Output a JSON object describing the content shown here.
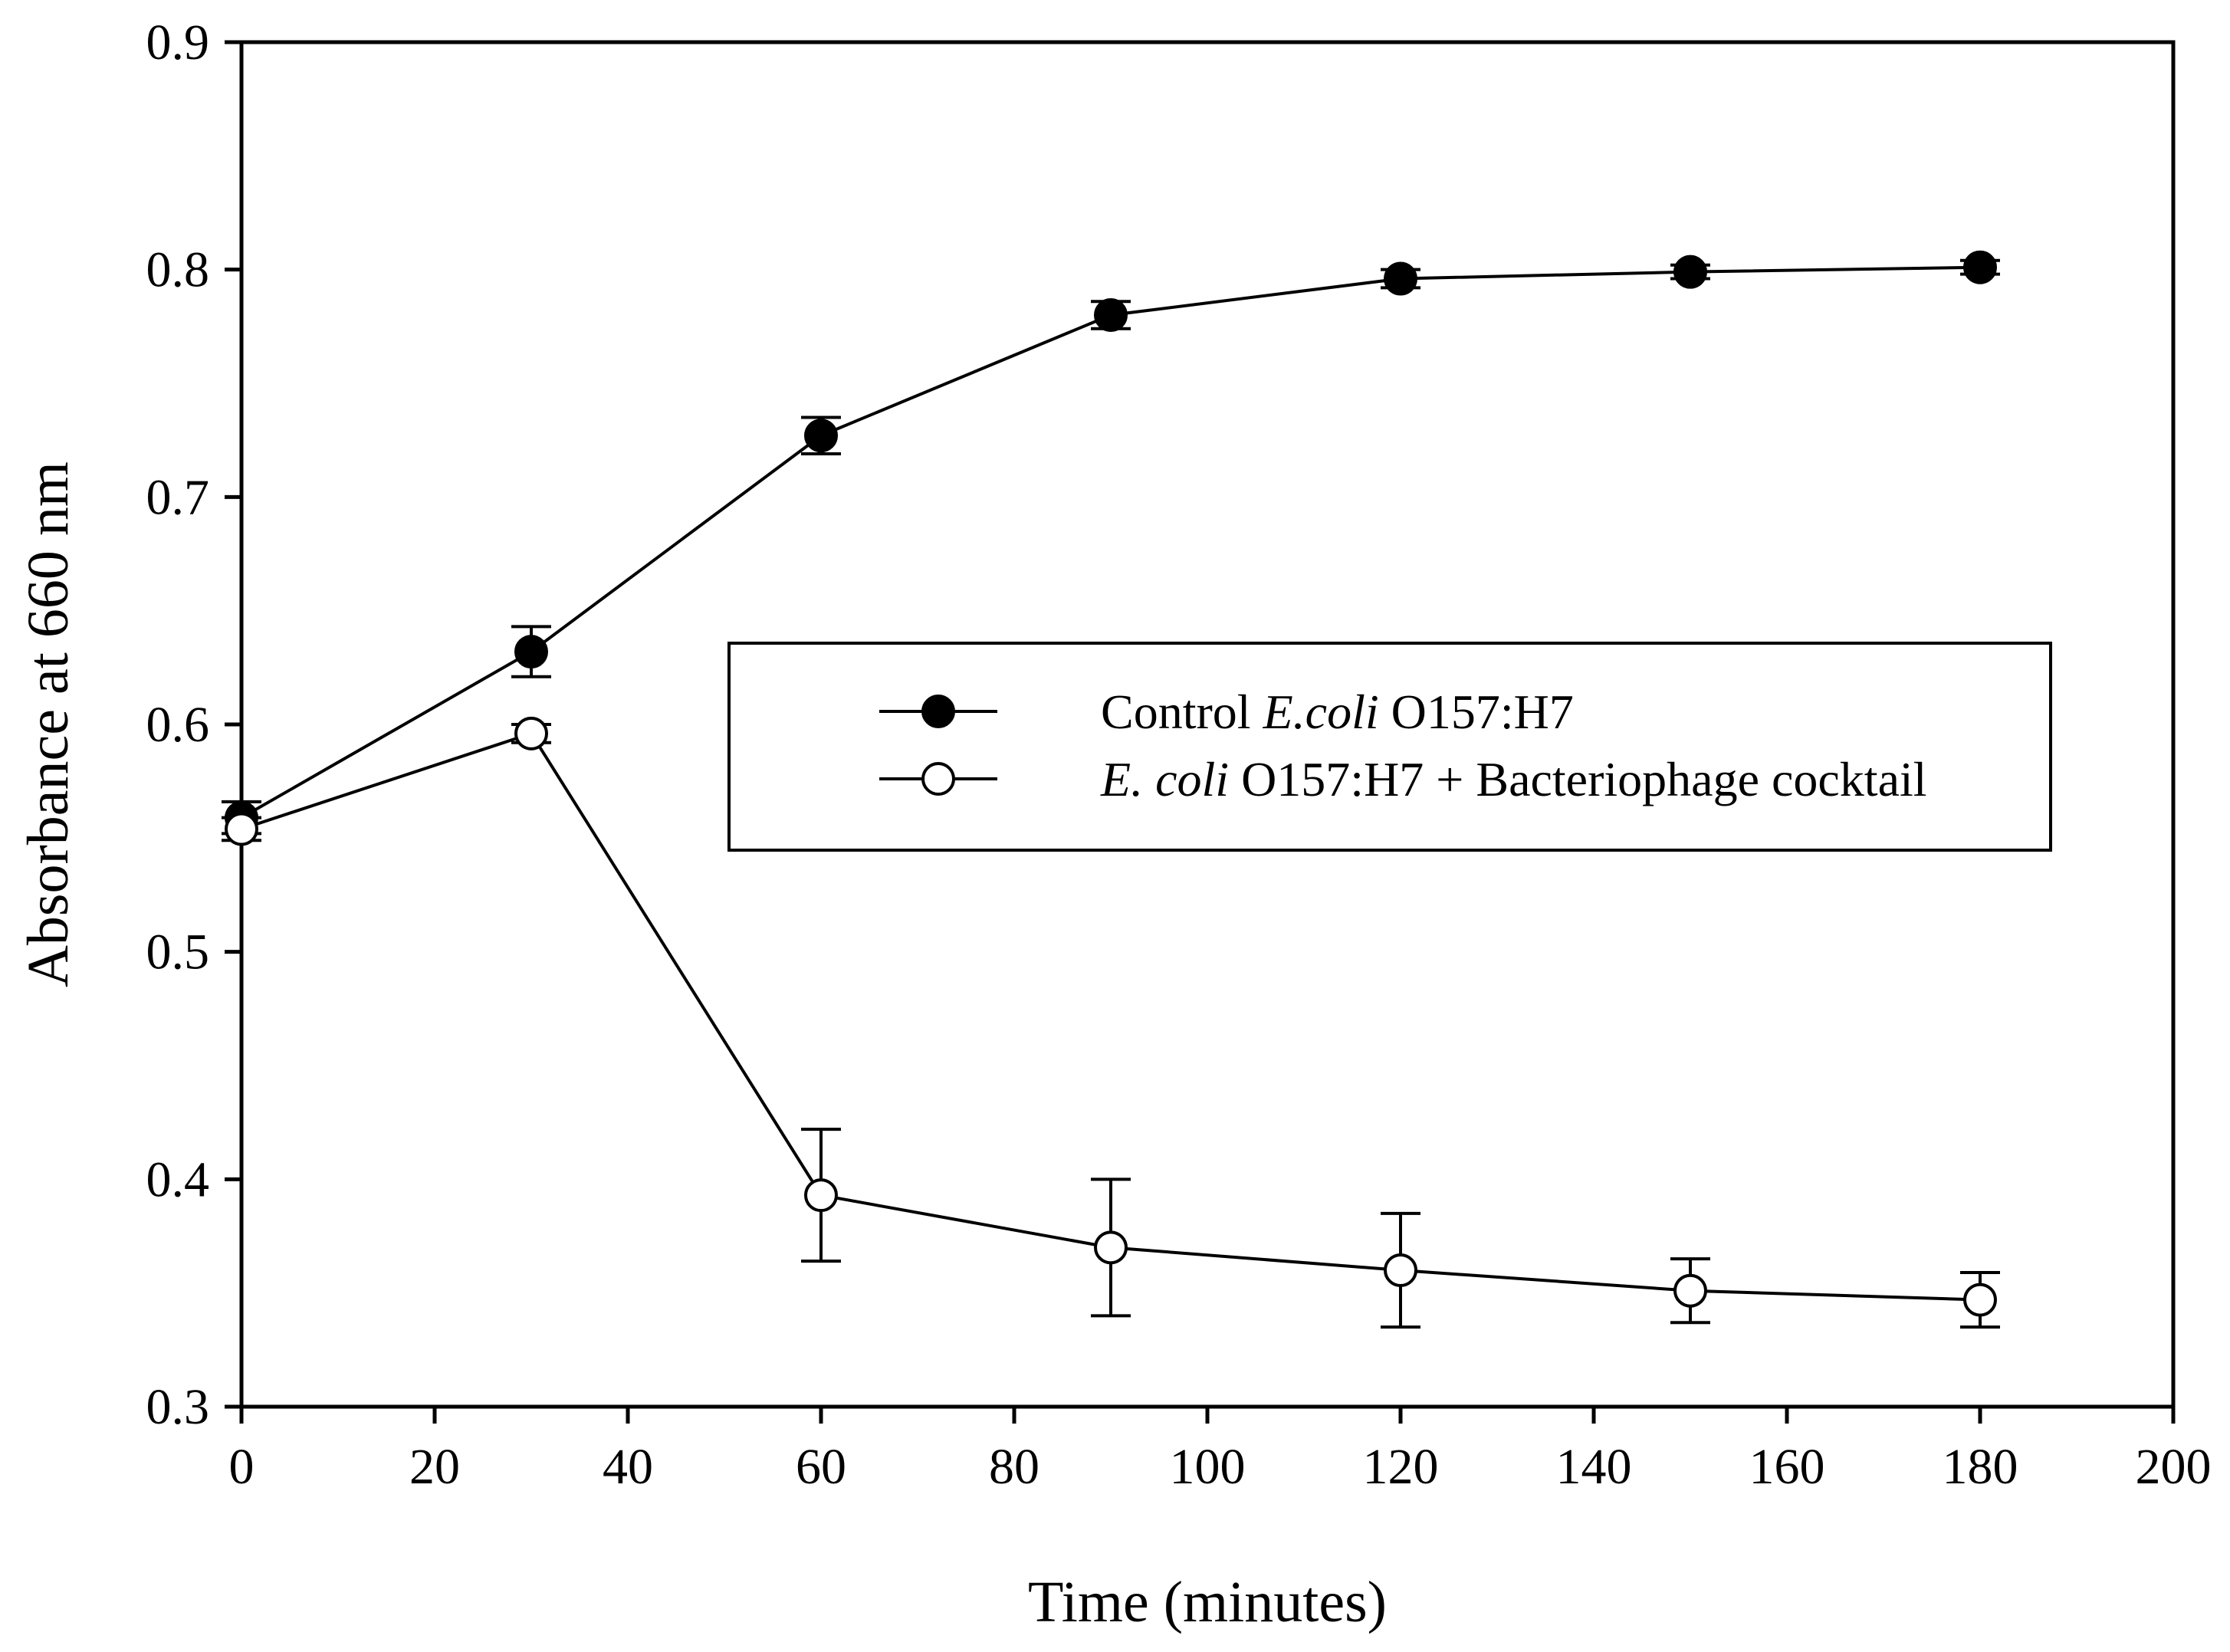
{
  "chart_data": {
    "type": "line",
    "xlabel": "Time (minutes)",
    "ylabel": "Absorbance at 660 nm",
    "xlim": [
      0,
      200
    ],
    "ylim": [
      0.3,
      0.9
    ],
    "x_ticks": [
      0,
      20,
      40,
      60,
      80,
      100,
      120,
      140,
      160,
      180,
      200
    ],
    "x_tick_labels": [
      "0",
      "20",
      "40",
      "60",
      "80",
      "100",
      "120",
      "140",
      "160",
      "180",
      "200"
    ],
    "y_ticks": [
      0.3,
      0.4,
      0.5,
      0.6,
      0.7,
      0.8,
      0.9
    ],
    "y_tick_labels": [
      "0.3",
      "0.4",
      "0.5",
      "0.6",
      "0.7",
      "0.8",
      "0.9"
    ],
    "grid": false,
    "legend_position": "center-right",
    "series": [
      {
        "name": "Control E.coli O157:H7",
        "marker": "filled-circle",
        "x": [
          0,
          30,
          60,
          90,
          120,
          150,
          180
        ],
        "y": [
          0.559,
          0.632,
          0.727,
          0.78,
          0.796,
          0.799,
          0.801
        ],
        "error": [
          0.007,
          0.011,
          0.008,
          0.006,
          0.004,
          0.003,
          0.003
        ]
      },
      {
        "name": "E. coli O157:H7 + Bacteriophage cocktail",
        "marker": "open-circle",
        "x": [
          0,
          30,
          60,
          90,
          120,
          150,
          180
        ],
        "y": [
          0.554,
          0.596,
          0.393,
          0.37,
          0.36,
          0.351,
          0.347
        ],
        "error": [
          0.005,
          0.004,
          0.029,
          0.03,
          0.025,
          0.014,
          0.012
        ]
      }
    ],
    "legend": {
      "entries": [
        {
          "parts": [
            {
              "text": "Control ",
              "italic": false
            },
            {
              "text": "E.coli",
              "italic": true
            },
            {
              "text": " O157:H7",
              "italic": false
            }
          ]
        },
        {
          "parts": [
            {
              "text": "E. coli",
              "italic": true
            },
            {
              "text": " O157:H7 + Bacteriophage cocktail",
              "italic": false
            }
          ]
        }
      ]
    }
  }
}
